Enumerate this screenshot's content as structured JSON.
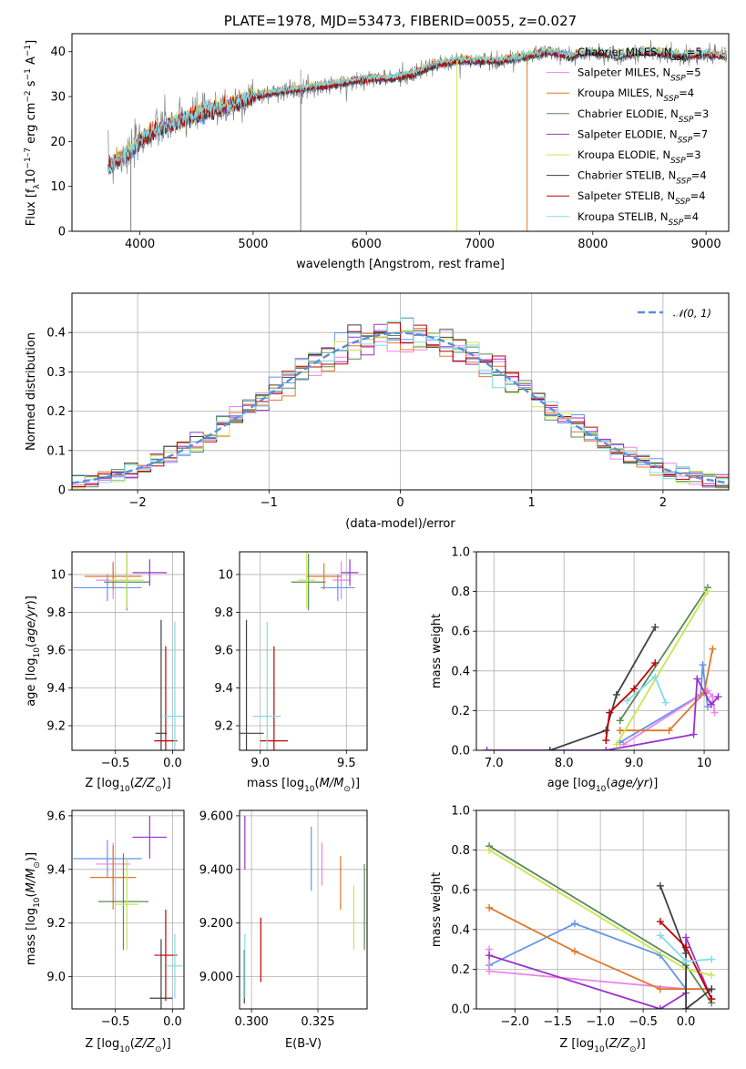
{
  "colors": {
    "Chabrier MILES": "#6495ed",
    "Salpeter MILES": "#ee82ee",
    "Kroupa MILES": "#e07828",
    "Chabrier ELODIE": "#5a8a5a",
    "Salpeter ELODIE": "#9932cc",
    "Kroupa ELODIE": "#c8e650",
    "Chabrier STELIB": "#404040",
    "Salpeter STELIB": "#c00000",
    "Kroupa STELIB": "#7fdde6"
  },
  "chart_data": [
    {
      "id": "spectrum",
      "type": "line",
      "title": "PLATE=1978, MJD=53473, FIBERID=0055, z=0.027",
      "xlabel": "wavelength [Angstrom, rest frame]",
      "ylabel": "Flux [fλ10⁻¹⁷ erg cm⁻² s⁻¹ A⁻¹]",
      "xlim": [
        3400,
        9200
      ],
      "ylim": [
        0,
        44
      ],
      "xticks": [
        4000,
        5000,
        6000,
        7000,
        8000,
        9000
      ],
      "yticks": [
        0,
        10,
        20,
        30,
        40
      ],
      "grid": false,
      "legend_placement": "upper right",
      "observed_anchors": [
        [
          3720,
          14
        ],
        [
          3800,
          16
        ],
        [
          3900,
          17
        ],
        [
          4000,
          20
        ],
        [
          4100,
          22
        ],
        [
          4300,
          24
        ],
        [
          4500,
          26
        ],
        [
          4800,
          28
        ],
        [
          5000,
          30
        ],
        [
          5200,
          31
        ],
        [
          5500,
          32
        ],
        [
          5800,
          33
        ],
        [
          6000,
          34
        ],
        [
          6200,
          34
        ],
        [
          6400,
          35
        ],
        [
          6600,
          37
        ],
        [
          6800,
          38
        ],
        [
          7000,
          38
        ],
        [
          7200,
          38
        ],
        [
          7400,
          39
        ],
        [
          7600,
          40
        ],
        [
          7800,
          39
        ],
        [
          8000,
          40
        ],
        [
          8200,
          39
        ],
        [
          8500,
          40
        ],
        [
          8800,
          39
        ],
        [
          9000,
          39.5
        ],
        [
          9180,
          39
        ]
      ],
      "spikes": [
        [
          3920,
          0
        ],
        [
          5420,
          0
        ],
        [
          6800,
          0
        ],
        [
          7420,
          0
        ]
      ],
      "series": [
        {
          "name": "Chabrier MILES",
          "nssp": "5"
        },
        {
          "name": "Salpeter MILES",
          "nssp": "5"
        },
        {
          "name": "Kroupa MILES",
          "nssp": "4"
        },
        {
          "name": "Chabrier ELODIE",
          "nssp": "3"
        },
        {
          "name": "Salpeter ELODIE",
          "nssp": "7"
        },
        {
          "name": "Kroupa ELODIE",
          "nssp": "3"
        },
        {
          "name": "Chabrier STELIB",
          "nssp": "4"
        },
        {
          "name": "Salpeter STELIB",
          "nssp": "4"
        },
        {
          "name": "Kroupa STELIB",
          "nssp": "4"
        }
      ]
    },
    {
      "id": "residuals",
      "type": "line",
      "xlabel": "(data-model)/error",
      "ylabel": "Normed distribution",
      "xlim": [
        -2.5,
        2.5
      ],
      "ylim": [
        0,
        0.5
      ],
      "xticks": [
        -2,
        -1,
        0,
        1,
        2
      ],
      "yticks": [
        0.0,
        0.1,
        0.2,
        0.3,
        0.4
      ],
      "grid": true,
      "legend": "𝒩(0, 1)",
      "legend_placement": "upper right",
      "bin_width": 0.1
    },
    {
      "id": "age_vs_Z",
      "type": "scatter",
      "xlabel": "Z [log10(Z/Z⊙)]",
      "ylabel": "age [log10(age/yr)]",
      "xlim": [
        -0.88,
        0.1
      ],
      "ylim": [
        9.07,
        10.12
      ],
      "xticks": [
        -0.5,
        0.0
      ],
      "yticks": [
        9.2,
        9.4,
        9.6,
        9.8,
        10.0
      ],
      "grid": true,
      "points": [
        {
          "series": "Chabrier MILES",
          "x": -0.57,
          "xerr": 0.3,
          "y": 9.93,
          "yerr": 0.07
        },
        {
          "series": "Salpeter MILES",
          "x": -0.52,
          "xerr": 0.15,
          "y": 9.97,
          "yerr": 0.1
        },
        {
          "series": "Kroupa MILES",
          "x": -0.52,
          "xerr": 0.25,
          "y": 9.99,
          "yerr": 0.07
        },
        {
          "series": "Chabrier ELODIE",
          "x": -0.4,
          "xerr": 0.2,
          "y": 9.96,
          "yerr": 0.15
        },
        {
          "series": "Salpeter ELODIE",
          "x": -0.2,
          "xerr": 0.15,
          "y": 10.01,
          "yerr": 0.07
        },
        {
          "series": "Kroupa ELODIE",
          "x": -0.4,
          "xerr": 0.15,
          "y": 9.97,
          "yerr": 0.15
        },
        {
          "series": "Chabrier STELIB",
          "x": -0.1,
          "xerr": 0.05,
          "y": 9.16,
          "yerr": 0.6
        },
        {
          "series": "Salpeter STELIB",
          "x": -0.06,
          "xerr": 0.1,
          "y": 9.12,
          "yerr": 0.5
        },
        {
          "series": "Kroupa STELIB",
          "x": 0.02,
          "xerr": 0.1,
          "y": 9.25,
          "yerr": 0.5
        }
      ]
    },
    {
      "id": "age_vs_mass",
      "type": "scatter",
      "xlabel": "mass [log10(M/M⊙)]",
      "ylabel": "",
      "xlim": [
        8.88,
        9.62
      ],
      "ylim": [
        9.07,
        10.12
      ],
      "xticks": [
        9.0,
        9.5
      ],
      "yticks": [
        9.2,
        9.4,
        9.6,
        9.8,
        10.0
      ],
      "grid": true,
      "points": [
        {
          "series": "Chabrier MILES",
          "x": 9.45,
          "xerr": 0.1,
          "y": 9.93,
          "yerr": 0.07
        },
        {
          "series": "Salpeter MILES",
          "x": 9.47,
          "xerr": 0.05,
          "y": 9.97,
          "yerr": 0.1
        },
        {
          "series": "Kroupa MILES",
          "x": 9.37,
          "xerr": 0.1,
          "y": 9.99,
          "yerr": 0.07
        },
        {
          "series": "Chabrier ELODIE",
          "x": 9.28,
          "xerr": 0.1,
          "y": 9.96,
          "yerr": 0.15
        },
        {
          "series": "Salpeter ELODIE",
          "x": 9.52,
          "xerr": 0.05,
          "y": 10.01,
          "yerr": 0.07
        },
        {
          "series": "Kroupa ELODIE",
          "x": 9.27,
          "xerr": 0.05,
          "y": 9.97,
          "yerr": 0.15
        },
        {
          "series": "Chabrier STELIB",
          "x": 8.92,
          "xerr": 0.1,
          "y": 9.16,
          "yerr": 0.6
        },
        {
          "series": "Salpeter STELIB",
          "x": 9.08,
          "xerr": 0.08,
          "y": 9.12,
          "yerr": 0.5
        },
        {
          "series": "Kroupa STELIB",
          "x": 9.04,
          "xerr": 0.08,
          "y": 9.25,
          "yerr": 0.5
        }
      ]
    },
    {
      "id": "weight_vs_age",
      "type": "line",
      "xlabel": "age [log10(age/yr)]",
      "ylabel": "mass weight",
      "xlim": [
        6.75,
        10.35
      ],
      "ylim": [
        0,
        1.0
      ],
      "xticks": [
        7,
        8,
        9,
        10
      ],
      "yticks": [
        0.0,
        0.2,
        0.4,
        0.6,
        0.8,
        1.0
      ],
      "grid": true,
      "series": [
        {
          "name": "Chabrier MILES",
          "x": [
            8.8,
            9.95,
            9.98,
            10.05
          ],
          "y": [
            0.04,
            0.28,
            0.43,
            0.22
          ]
        },
        {
          "name": "Salpeter MILES",
          "x": [
            8.85,
            10.05,
            10.12,
            10.15
          ],
          "y": [
            0.03,
            0.3,
            0.27,
            0.19
          ]
        },
        {
          "name": "Kroupa MILES",
          "x": [
            8.8,
            9.5,
            10.0,
            10.12
          ],
          "y": [
            0.1,
            0.1,
            0.29,
            0.51
          ]
        },
        {
          "name": "Chabrier ELODIE",
          "x": [
            8.8,
            10.05
          ],
          "y": [
            0.15,
            0.82
          ]
        },
        {
          "name": "Salpeter ELODIE",
          "x": [
            6.9,
            8.6,
            9.85,
            9.9,
            10.1,
            10.2
          ],
          "y": [
            0.0,
            0.0,
            0.08,
            0.36,
            0.23,
            0.27
          ]
        },
        {
          "name": "Kroupa ELODIE",
          "x": [
            8.75,
            10.05
          ],
          "y": [
            0.03,
            0.8
          ]
        },
        {
          "name": "Chabrier STELIB",
          "x": [
            7.8,
            8.6,
            8.75,
            9.3
          ],
          "y": [
            0.0,
            0.1,
            0.28,
            0.62
          ]
        },
        {
          "name": "Salpeter STELIB",
          "x": [
            8.6,
            8.65,
            9.0,
            9.3
          ],
          "y": [
            0.05,
            0.19,
            0.31,
            0.44
          ]
        },
        {
          "name": "Kroupa STELIB",
          "x": [
            8.9,
            9.3,
            9.45
          ],
          "y": [
            0.25,
            0.37,
            0.24
          ]
        }
      ]
    },
    {
      "id": "mass_vs_Z",
      "type": "scatter",
      "xlabel": "Z [log10(Z/Z⊙)]",
      "ylabel": "mass [log10(M/M⊙)]",
      "xlim": [
        -0.88,
        0.1
      ],
      "ylim": [
        8.88,
        9.62
      ],
      "xticks": [
        -0.5,
        0.0
      ],
      "yticks": [
        9.0,
        9.2,
        9.4,
        9.6
      ],
      "grid": true,
      "points": [
        {
          "series": "Chabrier MILES",
          "x": -0.57,
          "xerr": 0.3,
          "y": 9.44,
          "yerr": 0.07
        },
        {
          "series": "Salpeter MILES",
          "x": -0.52,
          "xerr": 0.15,
          "y": 9.42,
          "yerr": 0.08
        },
        {
          "series": "Kroupa MILES",
          "x": -0.52,
          "xerr": 0.2,
          "y": 9.37,
          "yerr": 0.12
        },
        {
          "series": "Chabrier ELODIE",
          "x": -0.43,
          "xerr": 0.22,
          "y": 9.28,
          "yerr": 0.18
        },
        {
          "series": "Salpeter ELODIE",
          "x": -0.2,
          "xerr": 0.15,
          "y": 9.52,
          "yerr": 0.08
        },
        {
          "series": "Kroupa ELODIE",
          "x": -0.4,
          "xerr": 0.1,
          "y": 9.27,
          "yerr": 0.17
        },
        {
          "series": "Chabrier STELIB",
          "x": -0.1,
          "xerr": 0.1,
          "y": 8.92,
          "yerr": 0.22
        },
        {
          "series": "Salpeter STELIB",
          "x": -0.06,
          "xerr": 0.1,
          "y": 9.08,
          "yerr": 0.17
        },
        {
          "series": "Kroupa STELIB",
          "x": 0.02,
          "xerr": 0.07,
          "y": 9.04,
          "yerr": 0.12
        }
      ]
    },
    {
      "id": "mass_vs_EBV",
      "type": "scatter",
      "xlabel": "E(B-V)",
      "ylabel": "",
      "xlim": [
        0.2955,
        0.3435
      ],
      "ylim": [
        8.88,
        9.62
      ],
      "xticks": [
        0.3,
        0.325
      ],
      "yticks": [
        9.0,
        9.2,
        9.4,
        9.6
      ],
      "grid": true,
      "points": [
        {
          "series": "Chabrier MILES",
          "x": 0.3225,
          "y": 9.44,
          "yerr": 0.12
        },
        {
          "series": "Salpeter MILES",
          "x": 0.3265,
          "y": 9.42,
          "yerr": 0.08
        },
        {
          "series": "Kroupa MILES",
          "x": 0.3335,
          "y": 9.35,
          "yerr": 0.1
        },
        {
          "series": "Chabrier ELODIE",
          "x": 0.3425,
          "y": 9.26,
          "yerr": 0.16
        },
        {
          "series": "Salpeter ELODIE",
          "x": 0.2975,
          "y": 9.5,
          "yerr": 0.1
        },
        {
          "series": "Kroupa ELODIE",
          "x": 0.3385,
          "y": 9.22,
          "yerr": 0.12
        },
        {
          "series": "Chabrier STELIB",
          "x": 0.2973,
          "y": 9.0,
          "yerr": 0.1
        },
        {
          "series": "Salpeter STELIB",
          "x": 0.3035,
          "y": 9.1,
          "yerr": 0.12
        },
        {
          "series": "Kroupa STELIB",
          "x": 0.2975,
          "y": 9.04,
          "yerr": 0.12
        }
      ]
    },
    {
      "id": "weight_vs_Z",
      "type": "line",
      "xlabel": "Z [log10(Z/Z⊙)]",
      "ylabel": "mass weight",
      "xlim": [
        -2.45,
        0.5
      ],
      "ylim": [
        0,
        1.0
      ],
      "xticks": [
        -2.0,
        -1.5,
        -1.0,
        -0.5,
        0.0
      ],
      "yticks": [
        0.0,
        0.2,
        0.4,
        0.6,
        0.8,
        1.0
      ],
      "grid": true,
      "series": [
        {
          "name": "Chabrier MILES",
          "x": [
            -2.3,
            -1.3,
            -0.3,
            0.0
          ],
          "y": [
            0.22,
            0.43,
            0.27,
            0.1
          ]
        },
        {
          "name": "Salpeter MILES",
          "x": [
            -2.3,
            -2.3,
            0.0,
            0.3
          ],
          "y": [
            0.3,
            0.19,
            0.1,
            0.1
          ]
        },
        {
          "name": "Kroupa MILES",
          "x": [
            -2.3,
            -1.3,
            -0.3,
            0.3
          ],
          "y": [
            0.51,
            0.29,
            0.1,
            0.1
          ]
        },
        {
          "name": "Chabrier ELODIE",
          "x": [
            -2.3,
            0.0,
            0.3
          ],
          "y": [
            0.82,
            0.22,
            0.03
          ]
        },
        {
          "name": "Salpeter ELODIE",
          "x": [
            -2.3,
            -0.3,
            0.0,
            0.0,
            0.3
          ],
          "y": [
            0.27,
            0.0,
            0.08,
            0.36,
            0.05
          ]
        },
        {
          "name": "Kroupa ELODIE",
          "x": [
            -2.3,
            0.0,
            0.3
          ],
          "y": [
            0.8,
            0.2,
            0.17
          ]
        },
        {
          "name": "Chabrier STELIB",
          "x": [
            -0.3,
            0.0,
            0.0,
            0.3
          ],
          "y": [
            0.62,
            0.28,
            0.0,
            0.1
          ]
        },
        {
          "name": "Salpeter STELIB",
          "x": [
            -0.3,
            0.0,
            0.3
          ],
          "y": [
            0.44,
            0.31,
            0.05
          ]
        },
        {
          "name": "Kroupa STELIB",
          "x": [
            -0.3,
            0.0,
            0.3
          ],
          "y": [
            0.37,
            0.24,
            0.25
          ]
        }
      ]
    }
  ]
}
